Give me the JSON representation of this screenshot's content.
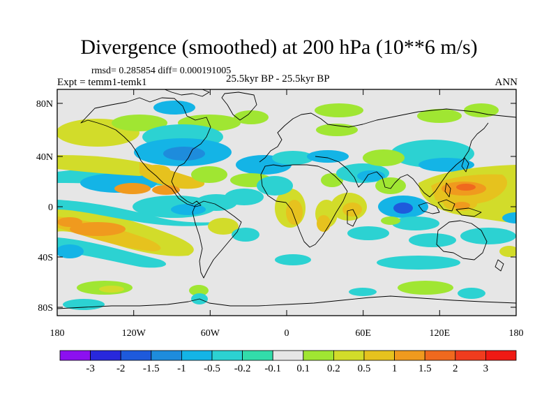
{
  "figure": {
    "title": "Divergence (smoothed) at 200 hPa (10**6 m/s)",
    "stats_line": "rmsd= 0.285854 diff= 0.000191005",
    "experiment": "Expt = temm1-temk1",
    "period": "25.5kyr BP - 25.5kyr BP",
    "season": "ANN"
  },
  "map": {
    "lat_labels": [
      "80N",
      "40N",
      "0",
      "40S",
      "80S"
    ],
    "lon_labels": [
      "180",
      "120W",
      "60W",
      "0",
      "60E",
      "120E",
      "180"
    ],
    "background_color": "#e6e6e6"
  },
  "colorbar": {
    "labels": [
      "-3",
      "-2",
      "-1.5",
      "-1",
      "-0.5",
      "-0.2",
      "-0.1",
      "0.1",
      "0.2",
      "0.5",
      "1",
      "1.5",
      "2",
      "3"
    ],
    "colors": [
      "#8c10f0",
      "#2828dc",
      "#1e5adc",
      "#1e8cdc",
      "#14b4e6",
      "#2cd2d2",
      "#32dcaa",
      "#e6e6e6",
      "#a0e632",
      "#d2dc2a",
      "#e6c21e",
      "#f09a1e",
      "#f0691e",
      "#f03c1e",
      "#f01a14"
    ]
  }
}
